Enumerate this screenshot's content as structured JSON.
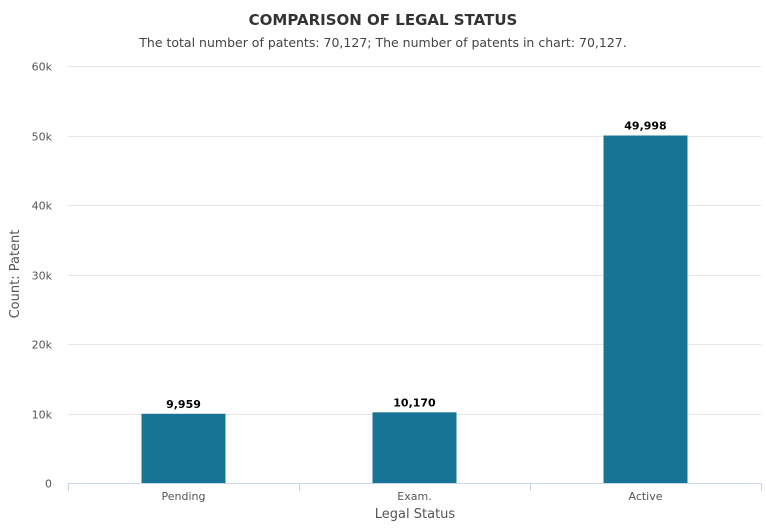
{
  "chart_data": {
    "type": "bar",
    "title": "COMPARISON OF LEGAL STATUS",
    "subtitle": "The total number of patents: 70,127; The number of patents in chart: 70,127.",
    "xlabel": "Legal Status",
    "ylabel": "Count: Patent",
    "categories": [
      "Pending",
      "Exam.",
      "Active"
    ],
    "values": [
      9959,
      10170,
      49998
    ],
    "value_labels": [
      "9,959",
      "10,170",
      "49,998"
    ],
    "ylim": [
      0,
      60000
    ],
    "yticks": [
      0,
      10000,
      20000,
      30000,
      40000,
      50000,
      60000
    ],
    "ytick_labels": [
      "0",
      "10k",
      "20k",
      "30k",
      "40k",
      "50k",
      "60k"
    ],
    "grid": true,
    "bar_color": "#177495"
  }
}
